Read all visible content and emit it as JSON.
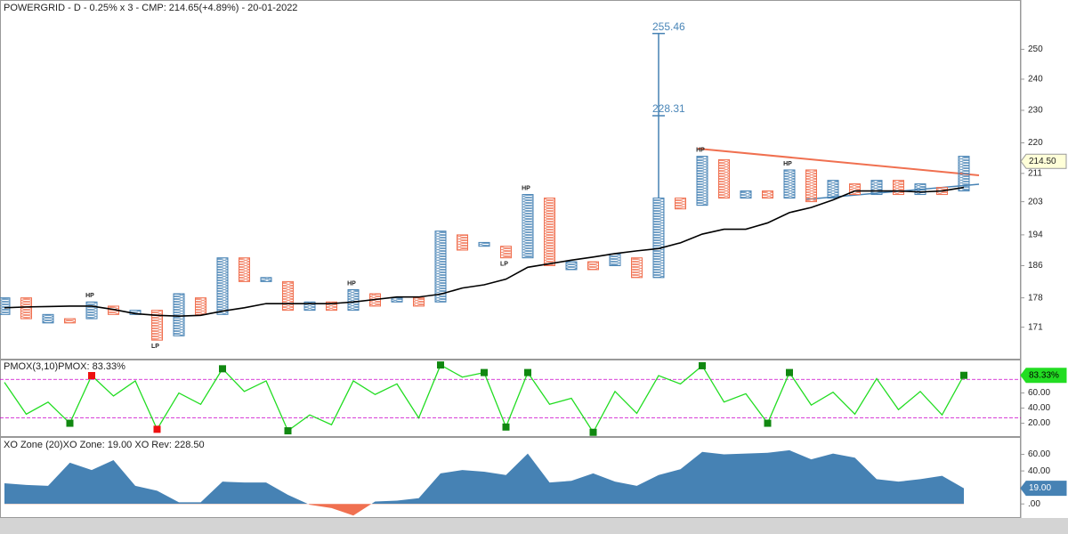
{
  "chart_data": [
    {
      "type": "pnf",
      "title": "POWERGRID - D - 0.25% x 3 - CMP: 214.65(+4.89%) - 20-01-2022",
      "log_scale": true,
      "ylim": [
        164,
        261
      ],
      "yticks": [
        171,
        178,
        186,
        194,
        203,
        211,
        220,
        230,
        240,
        250
      ],
      "x_color": "#4682b4",
      "o_color": "#f07050",
      "ma_color": "#000000",
      "columns": [
        {
          "kind": "X",
          "low": 174,
          "high": 178
        },
        {
          "kind": "O",
          "low": 173,
          "high": 178
        },
        {
          "kind": "X",
          "low": 172,
          "high": 174
        },
        {
          "kind": "O",
          "low": 172,
          "high": 173
        },
        {
          "kind": "X",
          "low": 173,
          "high": 177,
          "pivot": "HP"
        },
        {
          "kind": "O",
          "low": 174,
          "high": 176
        },
        {
          "kind": "X",
          "low": 174,
          "high": 175
        },
        {
          "kind": "O",
          "low": 168,
          "high": 175,
          "pivot": "LP"
        },
        {
          "kind": "X",
          "low": 169,
          "high": 179
        },
        {
          "kind": "O",
          "low": 174,
          "high": 178
        },
        {
          "kind": "X",
          "low": 174,
          "high": 188
        },
        {
          "kind": "O",
          "low": 182,
          "high": 188
        },
        {
          "kind": "X",
          "low": 182,
          "high": 183
        },
        {
          "kind": "O",
          "low": 175,
          "high": 182
        },
        {
          "kind": "X",
          "low": 175,
          "high": 177
        },
        {
          "kind": "O",
          "low": 175,
          "high": 177
        },
        {
          "kind": "X",
          "low": 175,
          "high": 180,
          "pivot": "HP"
        },
        {
          "kind": "O",
          "low": 176,
          "high": 179
        },
        {
          "kind": "X",
          "low": 177,
          "high": 178
        },
        {
          "kind": "O",
          "low": 176,
          "high": 178
        },
        {
          "kind": "X",
          "low": 177,
          "high": 195
        },
        {
          "kind": "O",
          "low": 190,
          "high": 194
        },
        {
          "kind": "X",
          "low": 191,
          "high": 192
        },
        {
          "kind": "O",
          "low": 188,
          "high": 191,
          "pivot": "LP"
        },
        {
          "kind": "X",
          "low": 188,
          "high": 205,
          "pivot": "HP"
        },
        {
          "kind": "O",
          "low": 186,
          "high": 204
        },
        {
          "kind": "X",
          "low": 185,
          "high": 187
        },
        {
          "kind": "O",
          "low": 185,
          "high": 187
        },
        {
          "kind": "X",
          "low": 186,
          "high": 189
        },
        {
          "kind": "O",
          "low": 183,
          "high": 188
        },
        {
          "kind": "X",
          "low": 183,
          "high": 204,
          "spike_levels": [
            228.31,
            255.46
          ]
        },
        {
          "kind": "O",
          "low": 201,
          "high": 204
        },
        {
          "kind": "X",
          "low": 202,
          "high": 216,
          "pivot": "HP"
        },
        {
          "kind": "O",
          "low": 204,
          "high": 215
        },
        {
          "kind": "X",
          "low": 204,
          "high": 206
        },
        {
          "kind": "O",
          "low": 204,
          "high": 206
        },
        {
          "kind": "X",
          "low": 204,
          "high": 212,
          "pivot": "HP"
        },
        {
          "kind": "O",
          "low": 203,
          "high": 212
        },
        {
          "kind": "X",
          "low": 204,
          "high": 209
        },
        {
          "kind": "O",
          "low": 205,
          "high": 208
        },
        {
          "kind": "X",
          "low": 205,
          "high": 209
        },
        {
          "kind": "O",
          "low": 205,
          "high": 209
        },
        {
          "kind": "X",
          "low": 205,
          "high": 208
        },
        {
          "kind": "O",
          "low": 205,
          "high": 207
        },
        {
          "kind": "X",
          "low": 206,
          "high": 216
        }
      ],
      "ma_values": [
        175.6,
        175.8,
        175.9,
        176,
        176,
        175.2,
        174.2,
        173.8,
        173.6,
        173.8,
        174.8,
        175.6,
        176.6,
        176.6,
        176.6,
        176.6,
        177,
        177.6,
        178.2,
        178.2,
        178.9,
        180.4,
        181.2,
        182.6,
        185.6,
        186.5,
        187.4,
        188.2,
        189.1,
        189.8,
        190.4,
        191.9,
        194.2,
        195.5,
        195.5,
        197.2,
        200,
        201.4,
        203.5,
        206,
        206,
        206,
        205.7,
        206,
        207
      ],
      "last_price": {
        "value": 214.5,
        "label": "214.50"
      }
    },
    {
      "type": "line",
      "title": "PMOX(3,10)PMOX: 83.33%",
      "color": "#22dd22",
      "ylim": [
        3,
        103
      ],
      "yticks": [
        {
          "value": 20,
          "label": "20.00"
        },
        {
          "value": 40,
          "label": "40.00"
        },
        {
          "value": 60,
          "label": "60.00"
        }
      ],
      "reference_lines": [
        78,
        27
      ],
      "reference_color": "#cc00cc",
      "values": [
        74,
        32,
        48,
        20,
        83,
        56,
        76,
        12,
        60,
        45,
        92,
        62,
        76,
        10,
        31,
        18,
        76,
        58,
        72,
        27,
        97,
        81,
        87,
        15,
        87,
        45,
        53,
        8,
        62,
        33,
        83,
        72,
        96,
        48,
        59,
        20,
        87,
        44,
        61,
        32,
        79,
        38,
        62,
        31,
        83.33
      ],
      "marker_colors": [
        null,
        null,
        null,
        "#118811",
        "#ee1111",
        null,
        null,
        "#ee1111",
        null,
        null,
        "#118811",
        null,
        null,
        "#118811",
        null,
        null,
        null,
        null,
        null,
        null,
        "#118811",
        null,
        "#118811",
        "#118811",
        "#118811",
        null,
        null,
        "#118811",
        null,
        null,
        null,
        null,
        "#118811",
        null,
        null,
        "#118811",
        "#118811",
        null,
        null,
        null,
        null,
        null,
        null,
        null,
        "#118811"
      ],
      "last_value": {
        "value": 83.33,
        "label": "83.33%"
      }
    },
    {
      "type": "area",
      "title": "XO Zone (20)XO Zone: 19.00 XO Rev: 228.50",
      "positive_color": "#4682b4",
      "negative_color": "#f07050",
      "ylim": [
        -17,
        80
      ],
      "yticks": [
        {
          "value": 0,
          "label": ".00"
        },
        {
          "value": 20,
          "label": "20.00"
        },
        {
          "value": 40,
          "label": "40.00"
        },
        {
          "value": 60,
          "label": "60.00"
        }
      ],
      "values": [
        25,
        23,
        22,
        50,
        41,
        53,
        22,
        16,
        2,
        2,
        27,
        26,
        26,
        11,
        -1,
        -5,
        -14,
        3,
        4,
        7,
        37,
        41,
        39,
        35,
        61,
        26,
        28,
        37,
        27,
        22,
        35,
        42,
        63,
        60,
        61,
        62,
        65,
        54,
        61,
        56,
        30,
        27,
        30,
        34,
        19
      ],
      "last_value": {
        "value": 19,
        "label": "19.00"
      }
    }
  ]
}
